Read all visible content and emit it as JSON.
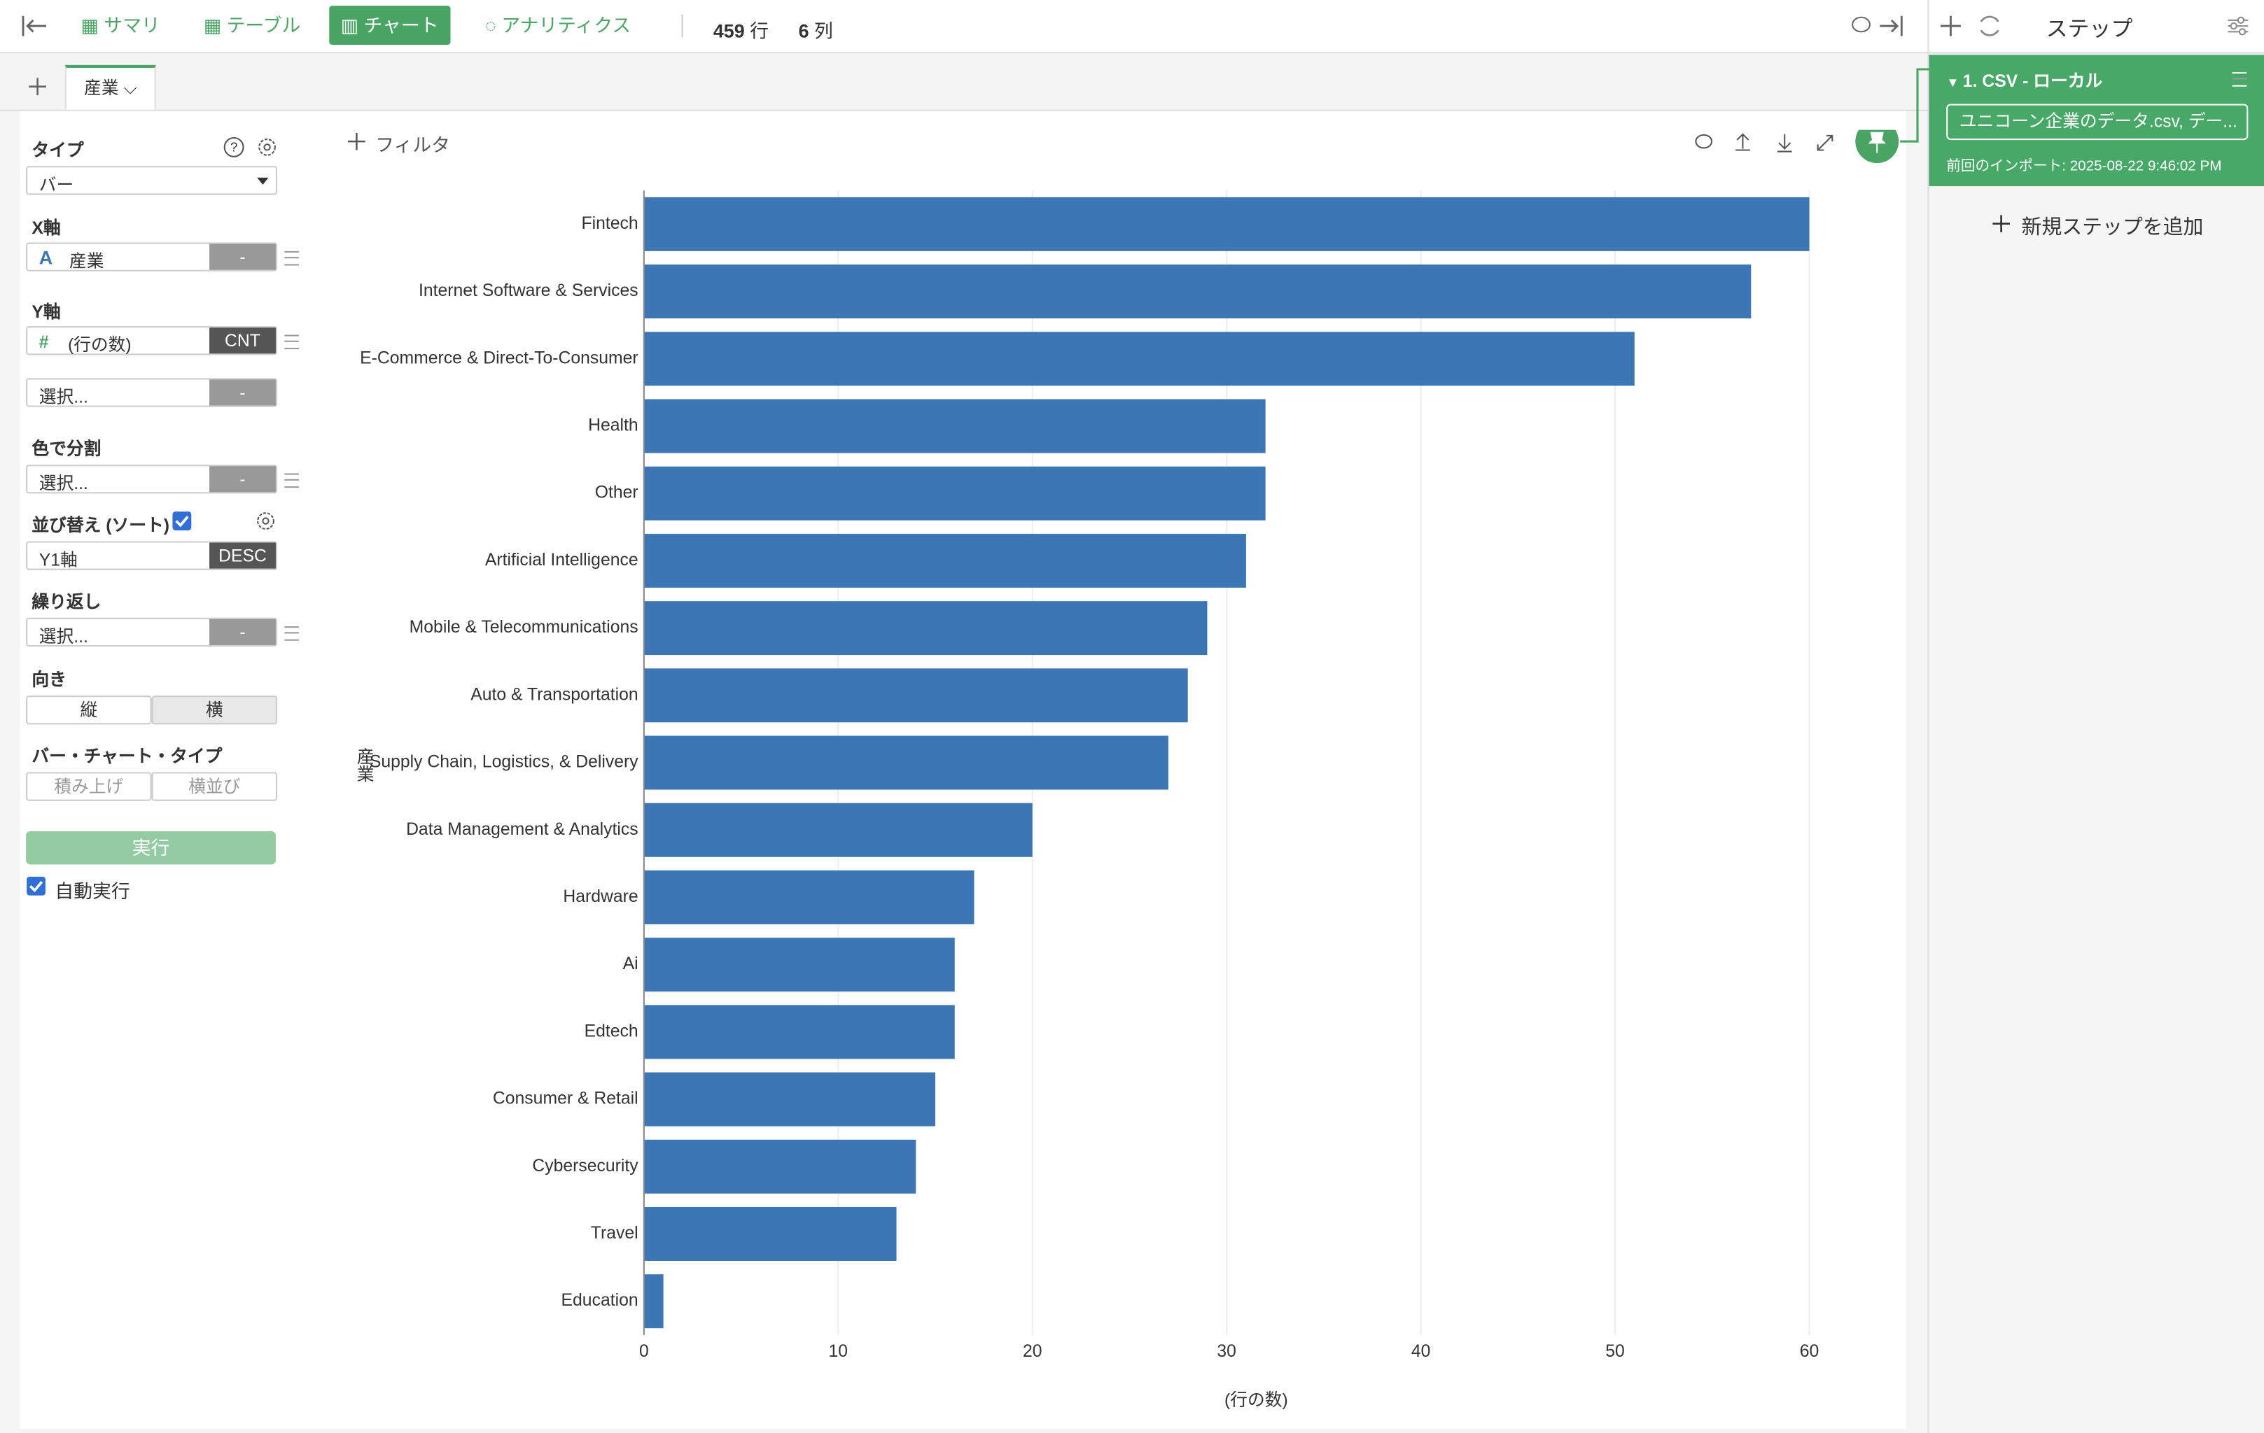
{
  "toolbar": {
    "tabs": [
      "サマリ",
      "テーブル",
      "チャート",
      "アナリティクス"
    ],
    "row_count": 459,
    "row_unit": "行",
    "col_count": 6,
    "col_unit": "列"
  },
  "sheet_tab": "産業",
  "panel": {
    "type_label": "タイプ",
    "type_value": "バー",
    "x_axis_label": "X軸",
    "x_field_icon": "A",
    "x_field": "産業",
    "x_agg": "-",
    "y_axis_label": "Y軸",
    "y_field_icon": "#",
    "y_field": "(行の数)",
    "y_agg": "CNT",
    "y2_placeholder": "選択...",
    "y2_agg": "-",
    "color_label": "色で分割",
    "color_placeholder": "選択...",
    "color_agg": "-",
    "sort_label": "並び替え (ソート)",
    "sort_field": "Y1軸",
    "sort_order": "DESC",
    "repeat_label": "繰り返し",
    "repeat_placeholder": "選択...",
    "repeat_agg": "-",
    "orientation_label": "向き",
    "orientation_options": [
      "縦",
      "横"
    ],
    "bar_type_label": "バー・チャート・タイプ",
    "bar_type_options": [
      "積み上げ",
      "横並び"
    ],
    "run_button": "実行",
    "auto_run": "自動実行"
  },
  "filter": "フィルタ",
  "chart_data": {
    "type": "bar",
    "orientation": "horizontal",
    "categories": [
      "Fintech",
      "Internet Software & Services",
      "E-Commerce & Direct-To-Consumer",
      "Health",
      "Other",
      "Artificial Intelligence",
      "Mobile & Telecommunications",
      "Auto & Transportation",
      "Supply Chain, Logistics, & Delivery",
      "Data Management & Analytics",
      "Hardware",
      "Ai",
      "Edtech",
      "Consumer & Retail",
      "Cybersecurity",
      "Travel",
      "Education"
    ],
    "values": [
      60,
      57,
      51,
      32,
      32,
      31,
      29,
      28,
      27,
      20,
      17,
      16,
      16,
      15,
      14,
      13,
      1
    ],
    "color": "#3d76b4",
    "xlabel": "(行の数)",
    "ylabel": "産業",
    "xlim": [
      0,
      62
    ],
    "xticks": [
      0,
      10,
      20,
      30,
      40,
      50,
      60
    ],
    "grid": true
  },
  "steps": {
    "title": "ステップ",
    "step_title": "1. CSV - ローカル",
    "step_file": "ユニコーン企業のデータ.csv, デー...",
    "step_info": "前回のインポート: 2025-08-22 9:46:02 PM",
    "add_step": "新規ステップを追加"
  }
}
